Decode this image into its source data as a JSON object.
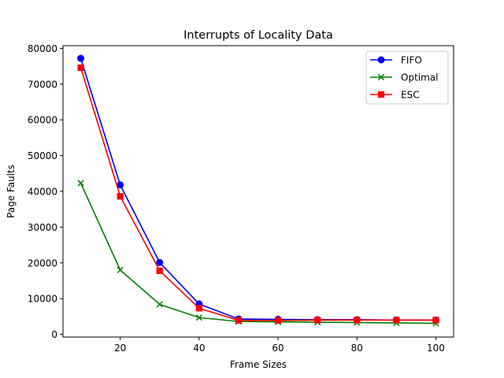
{
  "chart_data": {
    "type": "line",
    "title": "Interrupts of Locality Data",
    "xlabel": "Frame Sizes",
    "ylabel": "Page Faults",
    "x": [
      10,
      20,
      30,
      40,
      50,
      60,
      70,
      80,
      90,
      100
    ],
    "xlim": [
      5.5,
      104.5
    ],
    "ylim": [
      -750,
      80750
    ],
    "xticks": [
      20,
      40,
      60,
      80,
      100
    ],
    "yticks": [
      0,
      10000,
      20000,
      30000,
      40000,
      50000,
      60000,
      70000,
      80000
    ],
    "grid": false,
    "legend_position": "top-right",
    "series": [
      {
        "name": "FIFO",
        "color": "#0000ff",
        "marker": "circle",
        "values": [
          77200,
          41800,
          20100,
          8500,
          4300,
          4200,
          4100,
          4100,
          4000,
          4000
        ]
      },
      {
        "name": "Optimal",
        "color": "#008000",
        "marker": "x",
        "values": [
          42300,
          18000,
          8400,
          4700,
          3600,
          3500,
          3400,
          3300,
          3200,
          3100
        ]
      },
      {
        "name": "ESC",
        "color": "#ff0000",
        "marker": "square",
        "values": [
          74600,
          38600,
          17800,
          7300,
          3900,
          3900,
          4000,
          4000,
          4000,
          4000
        ]
      }
    ]
  }
}
